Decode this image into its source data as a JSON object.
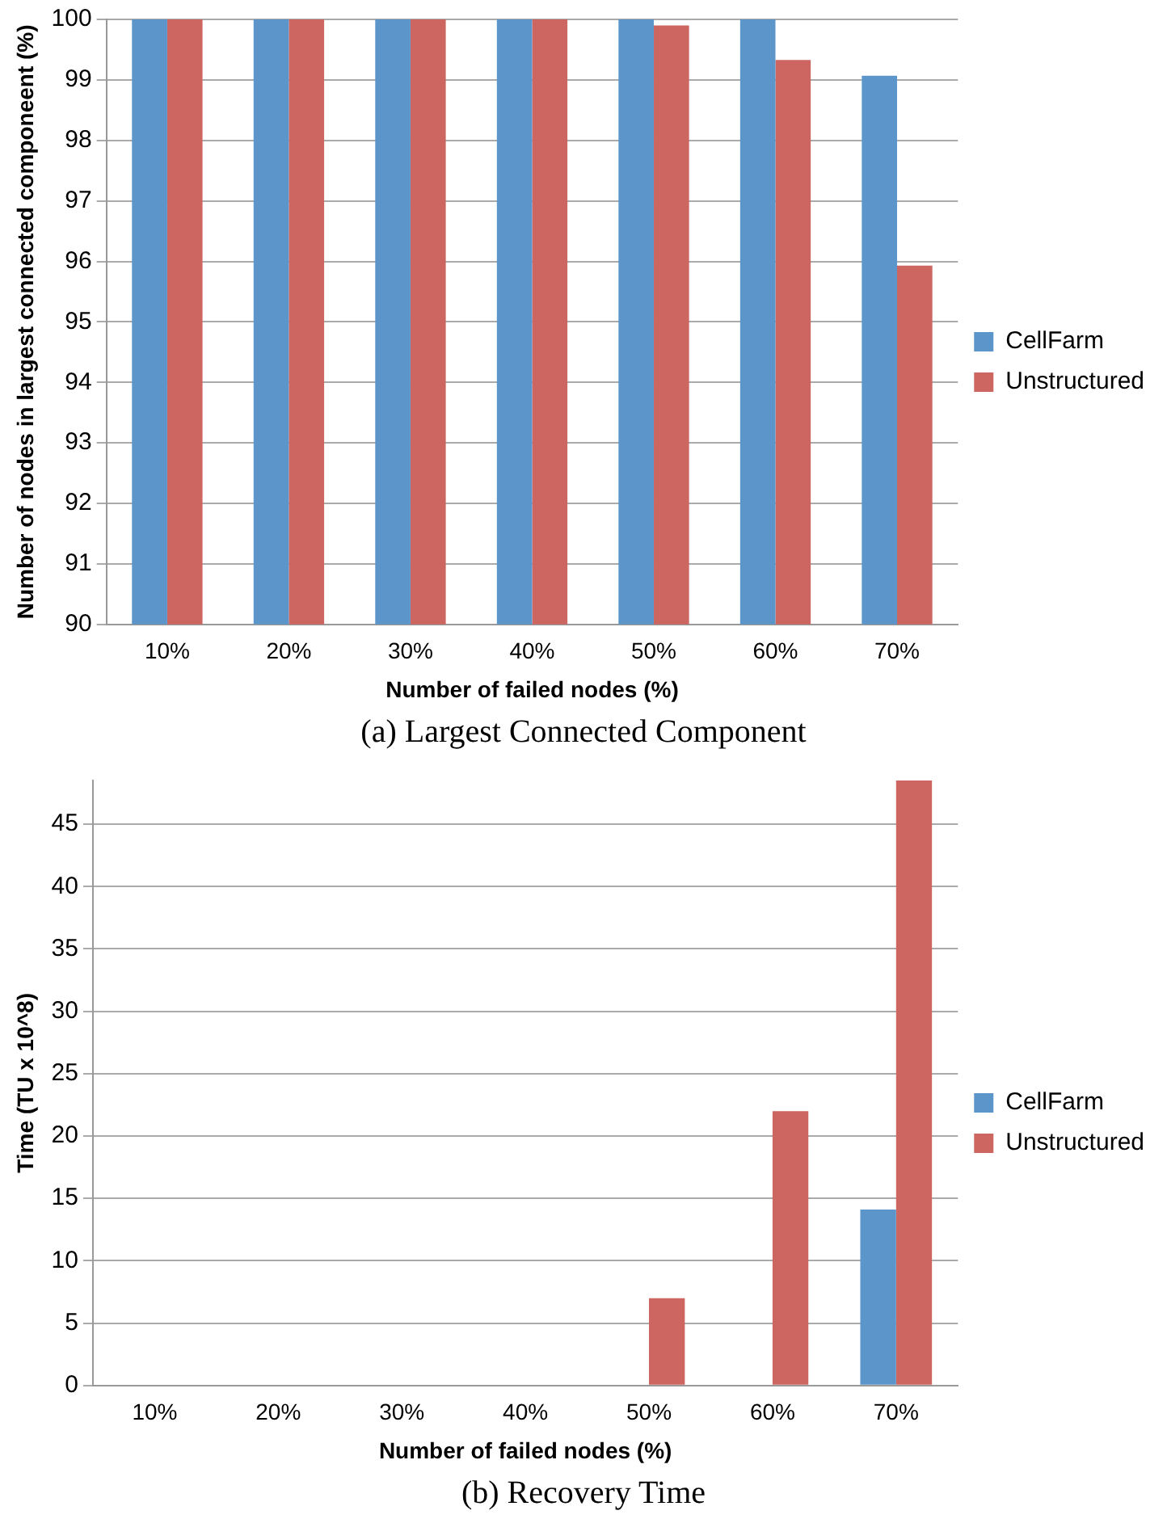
{
  "chart_data": [
    {
      "type": "bar",
      "title": "(a) Largest Connected Component",
      "xlabel": "Number of failed nodes (%)",
      "ylabel": "Number of nodes in largest connected componeent (%)",
      "categories": [
        "10%",
        "20%",
        "30%",
        "40%",
        "50%",
        "60%",
        "70%"
      ],
      "series": [
        {
          "name": "CellFarm",
          "color": "#5b95c9",
          "values": [
            100,
            100,
            100,
            100,
            100,
            100,
            99.07
          ]
        },
        {
          "name": "Unstructured",
          "color": "#cd6560",
          "values": [
            100,
            100,
            100,
            100,
            99.9,
            99.33,
            95.93
          ]
        }
      ],
      "ylim": [
        90,
        100
      ],
      "yticks": [
        90,
        91,
        92,
        93,
        94,
        95,
        96,
        97,
        98,
        99,
        100
      ],
      "grid": "y",
      "legend": "right"
    },
    {
      "type": "bar",
      "title": "(b) Recovery Time",
      "xlabel": "Number of failed nodes (%)",
      "ylabel": "Time (TU x 10^8)",
      "categories": [
        "10%",
        "20%",
        "30%",
        "40%",
        "50%",
        "60%",
        "70%"
      ],
      "series": [
        {
          "name": "CellFarm",
          "color": "#5b95c9",
          "values": [
            0,
            0,
            0,
            0,
            0,
            0,
            14.1
          ]
        },
        {
          "name": "Unstructured",
          "color": "#cd6560",
          "values": [
            0,
            0,
            0,
            0,
            7,
            22,
            48.5
          ]
        }
      ],
      "ylim": [
        0,
        48.5
      ],
      "yticks": [
        0,
        5,
        10,
        15,
        20,
        25,
        30,
        35,
        40,
        45
      ],
      "grid": "y",
      "legend": "right"
    }
  ]
}
